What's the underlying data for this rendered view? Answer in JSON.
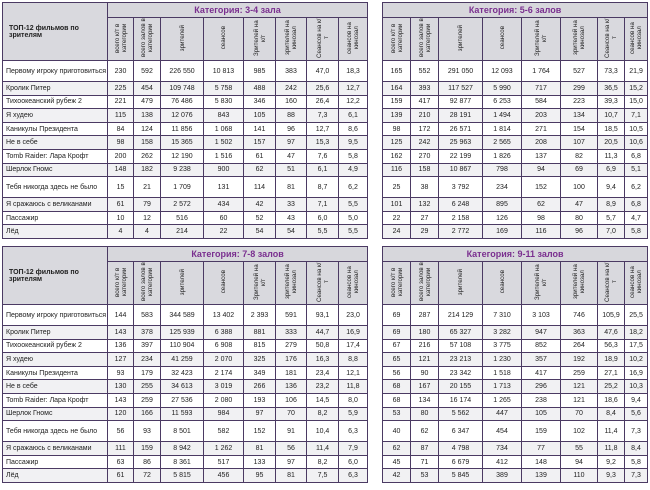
{
  "corner_label": "ТОП-12 фильмов по зрителям",
  "columns": [
    "всего к/т в категории",
    "всего залов в категории",
    "зрителей",
    "сеансов",
    "Зрителей на к/т",
    "зрителей на кинозал",
    "Сеансов на к/т",
    "сеансов на кинозал"
  ],
  "films": [
    "Первому игроку приготовиться",
    "Кролик Питер",
    "Тихоокеанский рубеж 2",
    "Я худею",
    "Каникулы Президента",
    "Не в себе",
    "Tomb Raider: Лара Крофт",
    "Шерлок Гномс",
    "Тебя никогда здесь не было",
    "Я сражаюсь с великанами",
    "Пассажир",
    "Лёд"
  ],
  "colors": {
    "category_title": "#7a2f8f",
    "border": "#4b3a63",
    "header_bg": "#d9d9de"
  },
  "tables": [
    {
      "title": "Категория: 3-4 зала",
      "rows": [
        [
          "230",
          "592",
          "226 550",
          "10 813",
          "985",
          "383",
          "47,0",
          "18,3"
        ],
        [
          "225",
          "454",
          "109 748",
          "5 758",
          "488",
          "242",
          "25,6",
          "12,7"
        ],
        [
          "221",
          "479",
          "76 486",
          "5 830",
          "346",
          "160",
          "26,4",
          "12,2"
        ],
        [
          "115",
          "138",
          "12 076",
          "843",
          "105",
          "88",
          "7,3",
          "6,1"
        ],
        [
          "84",
          "124",
          "11 856",
          "1 068",
          "141",
          "96",
          "12,7",
          "8,6"
        ],
        [
          "98",
          "158",
          "15 365",
          "1 502",
          "157",
          "97",
          "15,3",
          "9,5"
        ],
        [
          "200",
          "262",
          "12 190",
          "1 516",
          "61",
          "47",
          "7,6",
          "5,8"
        ],
        [
          "148",
          "182",
          "9 238",
          "900",
          "62",
          "51",
          "6,1",
          "4,9"
        ],
        [
          "15",
          "21",
          "1 709",
          "131",
          "114",
          "81",
          "8,7",
          "6,2"
        ],
        [
          "61",
          "79",
          "2 572",
          "434",
          "42",
          "33",
          "7,1",
          "5,5"
        ],
        [
          "10",
          "12",
          "516",
          "60",
          "52",
          "43",
          "6,0",
          "5,0"
        ],
        [
          "4",
          "4",
          "214",
          "22",
          "54",
          "54",
          "5,5",
          "5,5"
        ]
      ]
    },
    {
      "title": "Категория: 5-6 залов",
      "rows": [
        [
          "165",
          "552",
          "291 050",
          "12 093",
          "1 764",
          "527",
          "73,3",
          "21,9"
        ],
        [
          "164",
          "393",
          "117 527",
          "5 990",
          "717",
          "299",
          "36,5",
          "15,2"
        ],
        [
          "159",
          "417",
          "92 877",
          "6 253",
          "584",
          "223",
          "39,3",
          "15,0"
        ],
        [
          "139",
          "210",
          "28 191",
          "1 494",
          "203",
          "134",
          "10,7",
          "7,1"
        ],
        [
          "98",
          "172",
          "26 571",
          "1 814",
          "271",
          "154",
          "18,5",
          "10,5"
        ],
        [
          "125",
          "242",
          "25 963",
          "2 565",
          "208",
          "107",
          "20,5",
          "10,6"
        ],
        [
          "162",
          "270",
          "22 199",
          "1 826",
          "137",
          "82",
          "11,3",
          "6,8"
        ],
        [
          "116",
          "158",
          "10 867",
          "798",
          "94",
          "69",
          "6,9",
          "5,1"
        ],
        [
          "25",
          "38",
          "3 792",
          "234",
          "152",
          "100",
          "9,4",
          "6,2"
        ],
        [
          "101",
          "132",
          "6 248",
          "895",
          "62",
          "47",
          "8,9",
          "6,8"
        ],
        [
          "22",
          "27",
          "2 158",
          "126",
          "98",
          "80",
          "5,7",
          "4,7"
        ],
        [
          "24",
          "29",
          "2 772",
          "169",
          "116",
          "96",
          "7,0",
          "5,8"
        ]
      ]
    },
    {
      "title": "Категория: 7-8 залов",
      "rows": [
        [
          "144",
          "583",
          "344 589",
          "13 402",
          "2 393",
          "591",
          "93,1",
          "23,0"
        ],
        [
          "143",
          "378",
          "125 939",
          "6 388",
          "881",
          "333",
          "44,7",
          "16,9"
        ],
        [
          "136",
          "397",
          "110 904",
          "6 908",
          "815",
          "279",
          "50,8",
          "17,4"
        ],
        [
          "127",
          "234",
          "41 259",
          "2 070",
          "325",
          "176",
          "16,3",
          "8,8"
        ],
        [
          "93",
          "179",
          "32 423",
          "2 174",
          "349",
          "181",
          "23,4",
          "12,1"
        ],
        [
          "130",
          "255",
          "34 613",
          "3 019",
          "266",
          "136",
          "23,2",
          "11,8"
        ],
        [
          "143",
          "259",
          "27 536",
          "2 080",
          "193",
          "106",
          "14,5",
          "8,0"
        ],
        [
          "120",
          "166",
          "11 593",
          "984",
          "97",
          "70",
          "8,2",
          "5,9"
        ],
        [
          "56",
          "93",
          "8 501",
          "582",
          "152",
          "91",
          "10,4",
          "6,3"
        ],
        [
          "111",
          "159",
          "8 942",
          "1 262",
          "81",
          "56",
          "11,4",
          "7,9"
        ],
        [
          "63",
          "86",
          "8 361",
          "517",
          "133",
          "97",
          "8,2",
          "6,0"
        ],
        [
          "61",
          "72",
          "5 815",
          "456",
          "95",
          "81",
          "7,5",
          "6,3"
        ]
      ]
    },
    {
      "title": "Категория: 9-11 залов",
      "rows": [
        [
          "69",
          "287",
          "214 129",
          "7 310",
          "3 103",
          "746",
          "105,9",
          "25,5"
        ],
        [
          "69",
          "180",
          "65 327",
          "3 282",
          "947",
          "363",
          "47,6",
          "18,2"
        ],
        [
          "67",
          "216",
          "57 108",
          "3 775",
          "852",
          "264",
          "56,3",
          "17,5"
        ],
        [
          "65",
          "121",
          "23 213",
          "1 230",
          "357",
          "192",
          "18,9",
          "10,2"
        ],
        [
          "56",
          "90",
          "23 342",
          "1 518",
          "417",
          "259",
          "27,1",
          "16,9"
        ],
        [
          "68",
          "167",
          "20 155",
          "1 713",
          "296",
          "121",
          "25,2",
          "10,3"
        ],
        [
          "68",
          "134",
          "16 174",
          "1 265",
          "238",
          "121",
          "18,6",
          "9,4"
        ],
        [
          "53",
          "80",
          "5 562",
          "447",
          "105",
          "70",
          "8,4",
          "5,6"
        ],
        [
          "40",
          "62",
          "6 347",
          "454",
          "159",
          "102",
          "11,4",
          "7,3"
        ],
        [
          "62",
          "87",
          "4 798",
          "734",
          "77",
          "55",
          "11,8",
          "8,4"
        ],
        [
          "45",
          "71",
          "6 679",
          "412",
          "148",
          "94",
          "9,2",
          "5,8"
        ],
        [
          "42",
          "53",
          "5 845",
          "389",
          "139",
          "110",
          "9,3",
          "7,3"
        ]
      ]
    }
  ]
}
